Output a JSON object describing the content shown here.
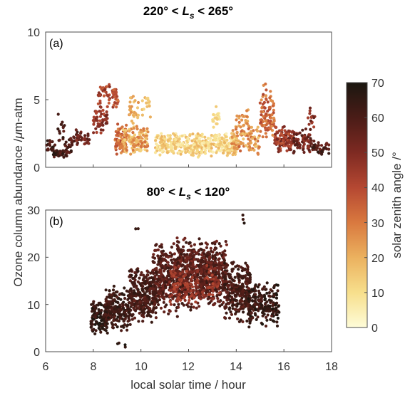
{
  "chart_data": [
    {
      "panel": "(a)",
      "type": "scatter",
      "title": {
        "pre": "220° < ",
        "var": "L",
        "sub": "s",
        "post": " < 265°"
      },
      "x_range": [
        6,
        18
      ],
      "ylim": [
        0,
        10
      ],
      "yticks": [
        "0",
        "5",
        "10"
      ],
      "colour_variable": "solar zenith angle",
      "clusters": [
        {
          "x": [
            6.0,
            6.4
          ],
          "y": [
            0.8,
            2.2
          ],
          "sza": [
            55,
            68
          ],
          "n": 20
        },
        {
          "x": [
            6.3,
            6.9
          ],
          "y": [
            0.7,
            1.3
          ],
          "sza": [
            55,
            68
          ],
          "n": 45
        },
        {
          "x": [
            6.5,
            6.8
          ],
          "y": [
            1.6,
            4.2
          ],
          "sza": [
            55,
            65
          ],
          "n": 15
        },
        {
          "x": [
            6.8,
            7.1
          ],
          "y": [
            0.8,
            2.2
          ],
          "sza": [
            55,
            65
          ],
          "n": 20
        },
        {
          "x": [
            7.0,
            7.4
          ],
          "y": [
            1.5,
            3.0
          ],
          "sza": [
            50,
            62
          ],
          "n": 20
        },
        {
          "x": [
            7.3,
            7.9
          ],
          "y": [
            1.5,
            2.8
          ],
          "sza": [
            45,
            58
          ],
          "n": 25
        },
        {
          "x": [
            8.0,
            8.6
          ],
          "y": [
            2.4,
            4.6
          ],
          "sza": [
            40,
            55
          ],
          "n": 55
        },
        {
          "x": [
            8.2,
            8.7
          ],
          "y": [
            4.4,
            6.4
          ],
          "sza": [
            35,
            50
          ],
          "n": 30
        },
        {
          "x": [
            8.8,
            9.05
          ],
          "y": [
            4.2,
            6.2
          ],
          "sza": [
            30,
            45
          ],
          "n": 25
        },
        {
          "x": [
            8.9,
            9.4
          ],
          "y": [
            0.9,
            3.3
          ],
          "sza": [
            25,
            42
          ],
          "n": 70
        },
        {
          "x": [
            9.2,
            10.3
          ],
          "y": [
            0.8,
            3.2
          ],
          "sza": [
            12,
            32
          ],
          "n": 130
        },
        {
          "x": [
            9.5,
            9.9
          ],
          "y": [
            2.8,
            5.4
          ],
          "sza": [
            14,
            28
          ],
          "n": 30
        },
        {
          "x": [
            10.0,
            10.4
          ],
          "y": [
            3.5,
            6.0
          ],
          "sza": [
            10,
            22
          ],
          "n": 15
        },
        {
          "x": [
            10.6,
            14.0
          ],
          "y": [
            0.7,
            2.6
          ],
          "sza": [
            4,
            20
          ],
          "n": 400
        },
        {
          "x": [
            13.0,
            13.3
          ],
          "y": [
            2.5,
            4.7
          ],
          "sza": [
            6,
            15
          ],
          "n": 20
        },
        {
          "x": [
            13.8,
            15.0
          ],
          "y": [
            0.9,
            3.2
          ],
          "sza": [
            15,
            35
          ],
          "n": 110
        },
        {
          "x": [
            14.0,
            14.5
          ],
          "y": [
            2.5,
            4.5
          ],
          "sza": [
            20,
            32
          ],
          "n": 25
        },
        {
          "x": [
            15.0,
            15.6
          ],
          "y": [
            1.5,
            6.4
          ],
          "sza": [
            25,
            42
          ],
          "n": 90
        },
        {
          "x": [
            15.6,
            16.4
          ],
          "y": [
            0.9,
            3.2
          ],
          "sza": [
            35,
            55
          ],
          "n": 110
        },
        {
          "x": [
            16.4,
            17.2
          ],
          "y": [
            0.9,
            3.0
          ],
          "sza": [
            45,
            60
          ],
          "n": 70
        },
        {
          "x": [
            17.0,
            17.3
          ],
          "y": [
            2.8,
            4.6
          ],
          "sza": [
            42,
            55
          ],
          "n": 15
        },
        {
          "x": [
            17.2,
            17.9
          ],
          "y": [
            0.8,
            2.0
          ],
          "sza": [
            52,
            66
          ],
          "n": 40
        }
      ]
    },
    {
      "panel": "(b)",
      "type": "scatter",
      "title": {
        "pre": "80° < ",
        "var": "L",
        "sub": "s",
        "post": " < 120°"
      },
      "x_range": [
        6,
        18
      ],
      "ylim": [
        0,
        30
      ],
      "xticks": [
        "6",
        "8",
        "10",
        "12",
        "14",
        "16",
        "18"
      ],
      "yticks": [
        "0",
        "10",
        "20",
        "30"
      ],
      "colour_variable": "solar zenith angle",
      "clusters": [
        {
          "x": [
            7.9,
            8.6
          ],
          "y": [
            3.5,
            11.0
          ],
          "sza": [
            60,
            70
          ],
          "n": 120
        },
        {
          "x": [
            8.5,
            9.6
          ],
          "y": [
            4.0,
            14.0
          ],
          "sza": [
            58,
            68
          ],
          "n": 200
        },
        {
          "x": [
            9.5,
            10.6
          ],
          "y": [
            6.0,
            18.0
          ],
          "sza": [
            55,
            66
          ],
          "n": 280
        },
        {
          "x": [
            10.5,
            11.6
          ],
          "y": [
            7.0,
            24.0
          ],
          "sza": [
            52,
            64
          ],
          "n": 320
        },
        {
          "x": [
            11.5,
            12.6
          ],
          "y": [
            8.0,
            25.0
          ],
          "sza": [
            50,
            64
          ],
          "n": 340
        },
        {
          "x": [
            12.5,
            13.6
          ],
          "y": [
            9.0,
            24.0
          ],
          "sza": [
            52,
            64
          ],
          "n": 320
        },
        {
          "x": [
            13.5,
            14.6
          ],
          "y": [
            6.0,
            20.0
          ],
          "sza": [
            55,
            66
          ],
          "n": 280
        },
        {
          "x": [
            14.5,
            15.8
          ],
          "y": [
            5.0,
            15.0
          ],
          "sza": [
            58,
            70
          ],
          "n": 200
        },
        {
          "x": [
            11.2,
            13.3
          ],
          "y": [
            9.0,
            19.0
          ],
          "sza": [
            40,
            50
          ],
          "n": 140
        },
        {
          "x": [
            9.0,
            9.6
          ],
          "y": [
            0.5,
            3.0
          ],
          "sza": [
            62,
            70
          ],
          "n": 4
        },
        {
          "x": [
            14.2,
            14.4
          ],
          "y": [
            27.0,
            29.5
          ],
          "sza": [
            62,
            68
          ],
          "n": 3
        },
        {
          "x": [
            9.7,
            9.9
          ],
          "y": [
            25.0,
            26.5
          ],
          "sza": [
            62,
            68
          ],
          "n": 2
        }
      ]
    }
  ],
  "axes": {
    "xlabel": "local solar time / hour",
    "ylabel": "Ozone column abundance /",
    "ylabel_greek": "μ",
    "ylabel_unit": "m-atm"
  },
  "colorbar": {
    "label": "solar zenith angle /°",
    "range": [
      0,
      70
    ],
    "ticks": [
      "0",
      "10",
      "20",
      "30",
      "40",
      "50",
      "60",
      "70"
    ],
    "colormap": [
      "#fefcd8",
      "#f7df8c",
      "#ebb15f",
      "#d9793f",
      "#b54832",
      "#7e2a22",
      "#4a1c17",
      "#1b1710"
    ]
  }
}
